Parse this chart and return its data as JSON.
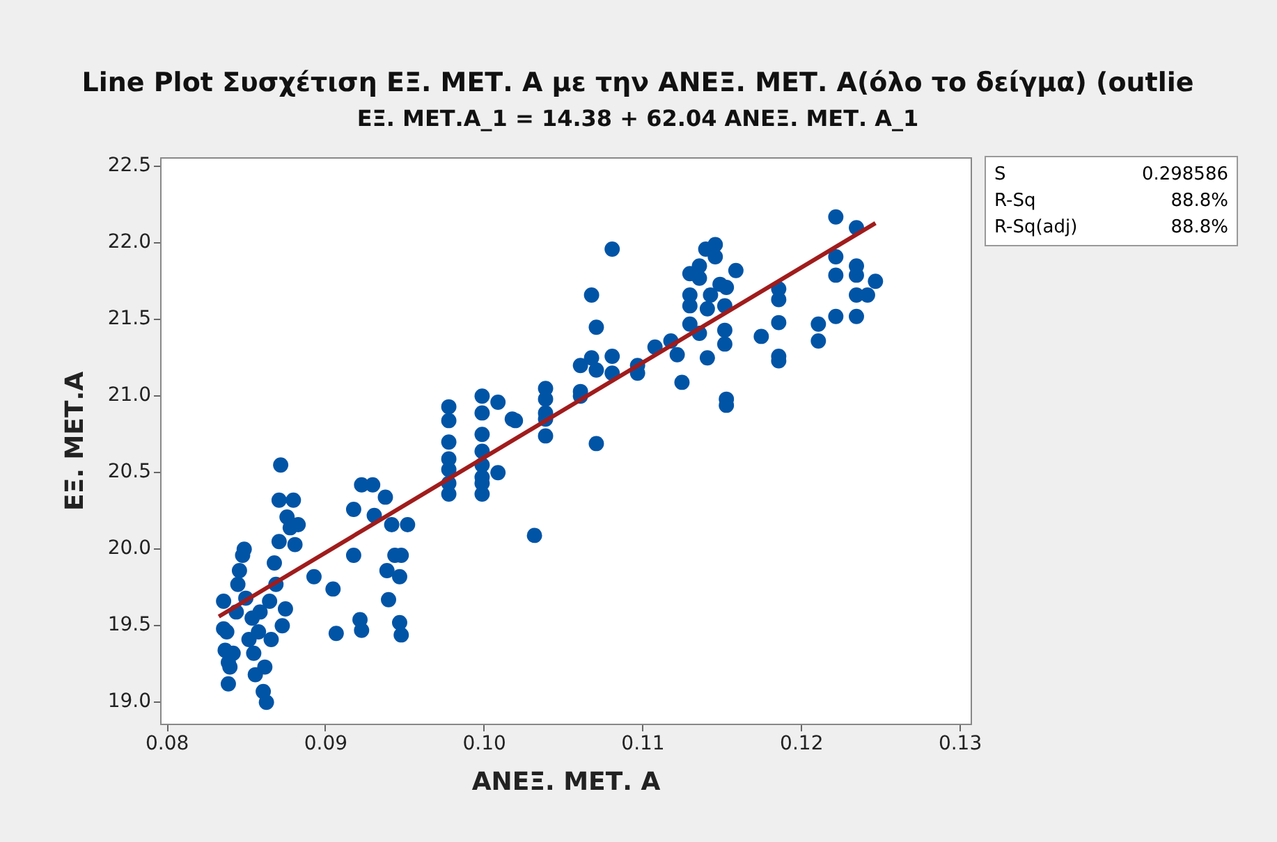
{
  "chart_data": {
    "type": "scatter",
    "title": "Line Plot Συσχέτιση ΕΞ. ΜΕΤ. Α με την ΑΝΕΞ. ΜΕΤ. Α(όλο το δείγμα) (outlie",
    "subtitle": "ΕΞ. ΜΕΤ.Α_1 = 14.38 + 62.04 ΑΝΕΞ. ΜΕΤ. Α_1",
    "xlabel": "ΑΝΕΞ. ΜΕΤ. Α",
    "ylabel": "ΕΞ. ΜΕΤ.Α",
    "annotations": [
      "S 0.298586",
      "R-Sq 88.8%",
      "R-Sq(adj) 88.8%"
    ],
    "xlim": [
      0.0796,
      0.1307
    ],
    "ylim": [
      18.85,
      22.55
    ],
    "xticks": [
      {
        "value": 0.08,
        "label": "0.08"
      },
      {
        "value": 0.09,
        "label": "0.09"
      },
      {
        "value": 0.1,
        "label": "0.10"
      },
      {
        "value": 0.11,
        "label": "0.11"
      },
      {
        "value": 0.12,
        "label": "0.12"
      },
      {
        "value": 0.13,
        "label": "0.13"
      }
    ],
    "yticks": [
      {
        "value": 19,
        "label": "19.0"
      },
      19.5,
      {
        "value": 20,
        "label": "20.0"
      },
      20.5,
      {
        "value": 21,
        "label": "21.0"
      },
      21.5,
      {
        "value": 22,
        "label": "22.0"
      },
      22.5
    ],
    "grid": false,
    "series": [
      {
        "marker": "circle",
        "color": "#0054a6",
        "x": [
          0.0836,
          0.0836,
          0.0837,
          0.0838,
          0.0839,
          0.0839,
          0.084,
          0.0842,
          0.0844,
          0.0845,
          0.0846,
          0.0848,
          0.0849,
          0.085,
          0.0852,
          0.0854,
          0.0855,
          0.0856,
          0.0858,
          0.0859,
          0.0861,
          0.0862,
          0.0863,
          0.0865,
          0.0866,
          0.0868,
          0.0869,
          0.0871,
          0.0871,
          0.0872,
          0.0873,
          0.0875,
          0.0876,
          0.0878,
          0.088,
          0.0881,
          0.0883,
          0.0893,
          0.0905,
          0.0907,
          0.0918,
          0.0918,
          0.0923,
          0.093,
          0.0938,
          0.0931,
          0.0922,
          0.0923,
          0.0942,
          0.0952,
          0.0944,
          0.0948,
          0.0939,
          0.0947,
          0.094,
          0.0947,
          0.0948,
          0.0978,
          0.0978,
          0.0978,
          0.0978,
          0.0978,
          0.0978,
          0.0978,
          0.0999,
          0.0999,
          0.0999,
          0.0999,
          0.0999,
          0.0999,
          0.0999,
          0.0999,
          0.1009,
          0.1009,
          0.1018,
          0.1032,
          0.102,
          0.1039,
          0.1039,
          0.1039,
          0.1039,
          0.1039,
          0.1061,
          0.1061,
          0.1061,
          0.1068,
          0.1071,
          0.1068,
          0.1071,
          0.1071,
          0.1081,
          0.1081,
          0.1081,
          0.1097,
          0.1097,
          0.1108,
          0.1118,
          0.1122,
          0.1125,
          0.113,
          0.113,
          0.113,
          0.113,
          0.1136,
          0.1136,
          0.1136,
          0.114,
          0.1146,
          0.1146,
          0.1143,
          0.1141,
          0.1141,
          0.1149,
          0.1152,
          0.1152,
          0.1152,
          0.1153,
          0.1153,
          0.1159,
          0.1153,
          0.1175,
          0.1186,
          0.1186,
          0.1186,
          0.1186,
          0.1186,
          0.1222,
          0.1235,
          0.1222,
          0.1222,
          0.1235,
          0.1235,
          0.1247,
          0.1235,
          0.1242,
          0.1222,
          0.1235,
          0.1211,
          0.1211
        ],
        "values": [
          19.65,
          19.47,
          19.33,
          19.45,
          19.25,
          19.11,
          19.22,
          19.31,
          19.58,
          19.76,
          19.85,
          19.95,
          19.99,
          19.67,
          19.4,
          19.54,
          19.31,
          19.17,
          19.45,
          19.58,
          19.06,
          19.22,
          18.99,
          19.65,
          19.4,
          19.9,
          19.76,
          20.04,
          20.31,
          20.54,
          19.49,
          19.6,
          20.2,
          20.13,
          20.31,
          20.02,
          20.15,
          19.81,
          19.73,
          19.44,
          20.25,
          19.95,
          20.41,
          20.41,
          20.33,
          20.21,
          19.53,
          19.46,
          20.15,
          20.15,
          19.95,
          19.95,
          19.85,
          19.81,
          19.66,
          19.51,
          19.43,
          20.92,
          20.83,
          20.69,
          20.58,
          20.51,
          20.42,
          20.35,
          20.99,
          20.88,
          20.74,
          20.63,
          20.54,
          20.46,
          20.42,
          20.35,
          20.95,
          20.49,
          20.84,
          20.08,
          20.83,
          21.04,
          20.97,
          20.88,
          20.84,
          20.73,
          21.19,
          21.02,
          20.99,
          21.65,
          21.44,
          21.24,
          21.16,
          20.68,
          21.95,
          21.25,
          21.14,
          21.19,
          21.14,
          21.31,
          21.35,
          21.26,
          21.08,
          21.79,
          21.65,
          21.58,
          21.46,
          21.84,
          21.76,
          21.4,
          21.95,
          21.98,
          21.9,
          21.65,
          21.56,
          21.24,
          21.72,
          21.58,
          21.42,
          21.33,
          20.97,
          20.93,
          21.81,
          21.7,
          21.38,
          21.69,
          21.62,
          21.47,
          21.25,
          21.22,
          22.16,
          22.09,
          21.9,
          21.78,
          21.84,
          21.78,
          21.74,
          21.65,
          21.65,
          21.51,
          21.51,
          21.46,
          21.35
        ]
      },
      {
        "type": "line",
        "color": "#a01c1c",
        "line_style": "solid",
        "x": [
          0.0833,
          0.1247
        ],
        "values": [
          19.55,
          22.12
        ]
      }
    ]
  }
}
